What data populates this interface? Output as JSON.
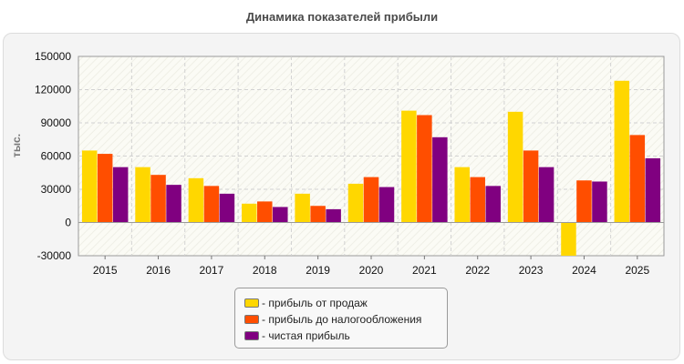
{
  "chart_data": {
    "type": "bar",
    "title": "Динамика показателей прибыли",
    "ylabel": "тыс.",
    "xlabel": "",
    "categories": [
      "2015",
      "2016",
      "2017",
      "2018",
      "2019",
      "2020",
      "2021",
      "2022",
      "2023",
      "2024",
      "2025"
    ],
    "series": [
      {
        "name": "- прибыль от продаж",
        "color": "#FFD700",
        "values": [
          65000,
          50000,
          40000,
          17000,
          26000,
          35000,
          101000,
          50000,
          100000,
          -37000,
          128000
        ]
      },
      {
        "name": "- прибыль до налогообложения",
        "color": "#FF4E00",
        "values": [
          62000,
          43000,
          33000,
          19000,
          15000,
          41000,
          97000,
          41000,
          65000,
          38000,
          79000
        ]
      },
      {
        "name": "- чистая прибыль",
        "color": "#800080",
        "values": [
          50000,
          34000,
          26000,
          14000,
          12000,
          32000,
          77000,
          33000,
          50000,
          37000,
          58000
        ]
      }
    ],
    "ylim": [
      -30000,
      150000
    ],
    "yticks": [
      -30000,
      0,
      30000,
      60000,
      90000,
      120000,
      150000
    ],
    "grid": true,
    "legend_position": "bottom-center"
  }
}
